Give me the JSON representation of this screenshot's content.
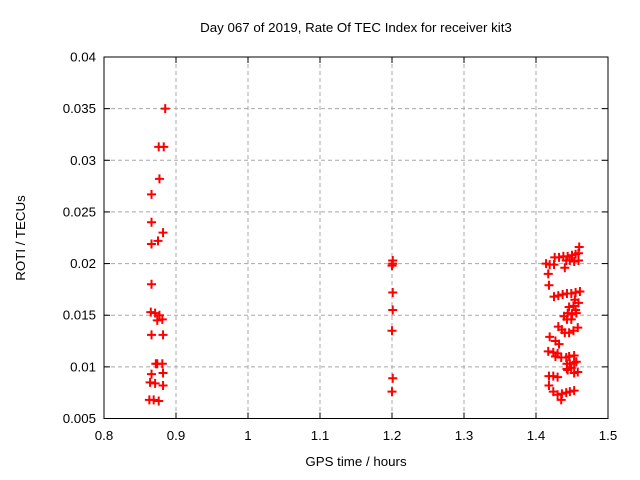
{
  "title": "Day 067 of 2019, Rate Of TEC Index for receiver kit3",
  "colors": {
    "marker": "#ff0000",
    "grid": "#a8a8a8",
    "axis": "#000000",
    "background": "#ffffff",
    "text": "#000000"
  },
  "chart_data": {
    "type": "scatter",
    "title": "Day 067 of 2019, Rate Of TEC Index for receiver kit3",
    "xlabel": "GPS time / hours",
    "ylabel": "ROTI / TECUs",
    "xlim": [
      0.8,
      1.5
    ],
    "ylim": [
      0.005,
      0.04
    ],
    "xticks": [
      0.8,
      0.9,
      1.0,
      1.1,
      1.2,
      1.3,
      1.4,
      1.5
    ],
    "xtick_labels": [
      "0.8",
      "0.9",
      "1",
      "1.1",
      "1.2",
      "1.3",
      "1.4",
      "1.5"
    ],
    "yticks": [
      0.005,
      0.01,
      0.015,
      0.02,
      0.025,
      0.03,
      0.035,
      0.04
    ],
    "ytick_labels": [
      "0.005",
      "0.01",
      "0.015",
      "0.02",
      "0.025",
      "0.03",
      "0.035",
      "0.04"
    ],
    "grid": true,
    "legend_position": "none",
    "marker": {
      "shape": "plus",
      "color": "#ff0000",
      "size": 5,
      "stroke_width": 2
    },
    "series": [
      {
        "name": "ROTI",
        "points": [
          [
            0.885,
            0.035
          ],
          [
            0.876,
            0.0313
          ],
          [
            0.883,
            0.0313
          ],
          [
            0.877,
            0.0282
          ],
          [
            0.866,
            0.0267
          ],
          [
            0.866,
            0.024
          ],
          [
            0.882,
            0.023
          ],
          [
            0.875,
            0.0222
          ],
          [
            0.866,
            0.0219
          ],
          [
            0.866,
            0.018
          ],
          [
            0.865,
            0.0153
          ],
          [
            0.871,
            0.0152
          ],
          [
            0.877,
            0.015
          ],
          [
            0.874,
            0.0145
          ],
          [
            0.881,
            0.0146
          ],
          [
            0.866,
            0.0131
          ],
          [
            0.882,
            0.0131
          ],
          [
            0.872,
            0.0103
          ],
          [
            0.874,
            0.0103
          ],
          [
            0.881,
            0.0103
          ],
          [
            0.866,
            0.0093
          ],
          [
            0.882,
            0.0094
          ],
          [
            0.864,
            0.0085
          ],
          [
            0.871,
            0.0084
          ],
          [
            0.882,
            0.0082
          ],
          [
            0.863,
            0.0068
          ],
          [
            0.869,
            0.0068
          ],
          [
            0.876,
            0.0067
          ],
          [
            1.201,
            0.0203
          ],
          [
            1.201,
            0.02
          ],
          [
            1.2,
            0.0198
          ],
          [
            1.201,
            0.0172
          ],
          [
            1.201,
            0.0155
          ],
          [
            1.2,
            0.0135
          ],
          [
            1.201,
            0.0089
          ],
          [
            1.2,
            0.0076
          ],
          [
            1.46,
            0.0216
          ],
          [
            1.426,
            0.0206
          ],
          [
            1.432,
            0.0206
          ],
          [
            1.438,
            0.0207
          ],
          [
            1.444,
            0.0207
          ],
          [
            1.45,
            0.0208
          ],
          [
            1.455,
            0.0209
          ],
          [
            1.459,
            0.021
          ],
          [
            1.442,
            0.0203
          ],
          [
            1.447,
            0.0203
          ],
          [
            1.453,
            0.0202
          ],
          [
            1.459,
            0.0203
          ],
          [
            1.414,
            0.02
          ],
          [
            1.419,
            0.0199
          ],
          [
            1.425,
            0.0199
          ],
          [
            1.44,
            0.0196
          ],
          [
            1.417,
            0.019
          ],
          [
            1.418,
            0.0179
          ],
          [
            1.425,
            0.0168
          ],
          [
            1.431,
            0.0169
          ],
          [
            1.437,
            0.017
          ],
          [
            1.443,
            0.0171
          ],
          [
            1.449,
            0.0171
          ],
          [
            1.455,
            0.0172
          ],
          [
            1.461,
            0.0173
          ],
          [
            1.454,
            0.0165
          ],
          [
            1.459,
            0.0162
          ],
          [
            1.446,
            0.0158
          ],
          [
            1.452,
            0.0159
          ],
          [
            1.455,
            0.0155
          ],
          [
            1.439,
            0.0149
          ],
          [
            1.444,
            0.0152
          ],
          [
            1.45,
            0.0151
          ],
          [
            1.456,
            0.0152
          ],
          [
            1.443,
            0.0146
          ],
          [
            1.449,
            0.0146
          ],
          [
            1.431,
            0.0139
          ],
          [
            1.436,
            0.0136
          ],
          [
            1.44,
            0.0133
          ],
          [
            1.446,
            0.0133
          ],
          [
            1.452,
            0.0135
          ],
          [
            1.458,
            0.0138
          ],
          [
            1.419,
            0.0129
          ],
          [
            1.427,
            0.0125
          ],
          [
            1.432,
            0.0122
          ],
          [
            1.417,
            0.0115
          ],
          [
            1.424,
            0.0114
          ],
          [
            1.43,
            0.0113
          ],
          [
            1.427,
            0.011
          ],
          [
            1.435,
            0.0109
          ],
          [
            1.442,
            0.0109
          ],
          [
            1.446,
            0.011
          ],
          [
            1.453,
            0.0111
          ],
          [
            1.443,
            0.0103
          ],
          [
            1.447,
            0.0103
          ],
          [
            1.453,
            0.0104
          ],
          [
            1.456,
            0.0105
          ],
          [
            1.449,
            0.0099
          ],
          [
            1.443,
            0.0098
          ],
          [
            1.444,
            0.0097
          ],
          [
            1.458,
            0.0095
          ],
          [
            1.453,
            0.0094
          ],
          [
            1.418,
            0.0091
          ],
          [
            1.424,
            0.0091
          ],
          [
            1.43,
            0.009
          ],
          [
            1.418,
            0.0082
          ],
          [
            1.424,
            0.0076
          ],
          [
            1.43,
            0.0073
          ],
          [
            1.436,
            0.0074
          ],
          [
            1.442,
            0.0075
          ],
          [
            1.447,
            0.0076
          ],
          [
            1.453,
            0.0077
          ],
          [
            1.435,
            0.0068
          ]
        ]
      }
    ]
  }
}
